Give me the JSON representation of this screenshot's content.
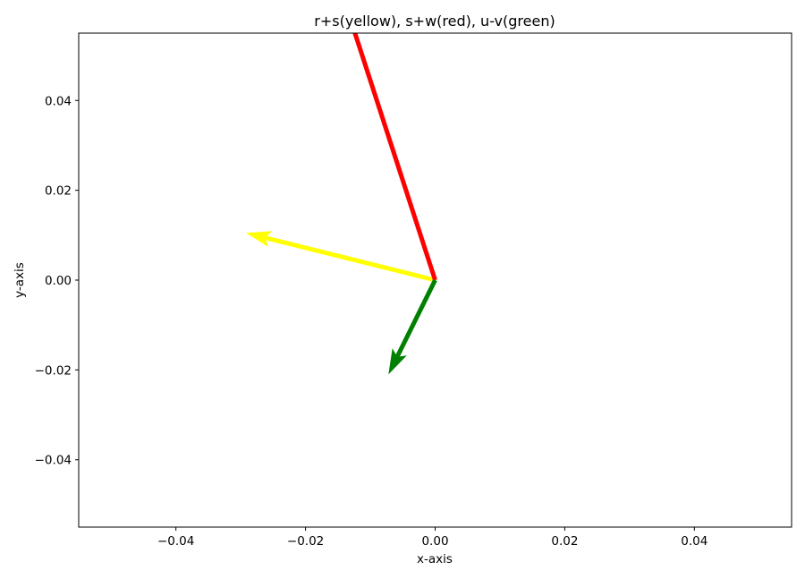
{
  "chart_data": {
    "type": "quiver",
    "title": "r+s(yellow), s+w(red), u-v(green)",
    "xlabel": "x-axis",
    "ylabel": "y-axis",
    "xlim": [
      -0.055,
      0.055
    ],
    "ylim": [
      -0.055,
      0.055
    ],
    "xticks": [
      -0.04,
      -0.02,
      0.0,
      0.02,
      0.04
    ],
    "xtick_labels": [
      "−0.04",
      "−0.02",
      "0.00",
      "0.02",
      "0.04"
    ],
    "yticks": [
      -0.04,
      -0.02,
      0.0,
      0.02,
      0.04
    ],
    "ytick_labels": [
      "−0.04",
      "−0.02",
      "0.00",
      "0.02",
      "0.04"
    ],
    "grid": false,
    "series": [
      {
        "color": "#ffff00",
        "x0": 0,
        "y0": 0,
        "x1": -0.0292,
        "y1": 0.0105,
        "head": true
      },
      {
        "color": "#ff0000",
        "x0": 0,
        "y0": 0,
        "x1": -0.0135,
        "y1": 0.06,
        "head": false
      },
      {
        "color": "#008000",
        "x0": 0,
        "y0": 0,
        "x1": -0.0072,
        "y1": -0.021,
        "head": true
      }
    ]
  }
}
